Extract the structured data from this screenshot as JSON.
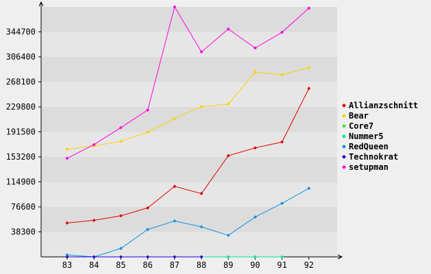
{
  "chart_data": {
    "type": "line",
    "title": "",
    "xlabel": "",
    "ylabel": "",
    "x": [
      "83",
      "84",
      "85",
      "86",
      "87",
      "88",
      "89",
      "90",
      "91",
      "92"
    ],
    "yticks": [
      38300,
      76600,
      114900,
      153200,
      191500,
      229800,
      268100,
      306400,
      344700
    ],
    "ytick_labels": [
      "38300",
      "76600",
      "114900",
      "153200",
      "191500",
      "229800",
      "268100",
      "306400",
      "344700"
    ],
    "ylim": [
      0,
      383000
    ],
    "grid": "horizontal bands",
    "legend_position": "right",
    "series": [
      {
        "name": "Allianzschnitt",
        "color": "#e00000",
        "values": [
          52000,
          56000,
          63000,
          75000,
          108000,
          97000,
          155000,
          167000,
          176000,
          258000
        ]
      },
      {
        "name": "Bear",
        "color": "#ffd000",
        "values": [
          165000,
          170000,
          177000,
          191000,
          212000,
          230000,
          234000,
          283000,
          279000,
          290000
        ]
      },
      {
        "name": "Core7",
        "color": "#40e040",
        "values": [
          null,
          null,
          null,
          null,
          null,
          null,
          null,
          null,
          null,
          null
        ]
      },
      {
        "name": "Nummer5",
        "color": "#00e0a0",
        "values": [
          null,
          null,
          null,
          null,
          null,
          0,
          0,
          0,
          0,
          null
        ]
      },
      {
        "name": "RedQueen",
        "color": "#1090e0",
        "values": [
          3000,
          0,
          13000,
          42000,
          55000,
          46000,
          33000,
          61000,
          82000,
          105000
        ]
      },
      {
        "name": "Technokrat",
        "color": "#2000d0",
        "values": [
          0,
          0,
          0,
          0,
          0,
          0,
          null,
          null,
          null,
          null
        ]
      },
      {
        "name": "setupman",
        "color": "#ff00dd",
        "values": [
          151000,
          172000,
          198000,
          225000,
          383000,
          314000,
          349000,
          320000,
          344000,
          381000
        ]
      }
    ]
  }
}
